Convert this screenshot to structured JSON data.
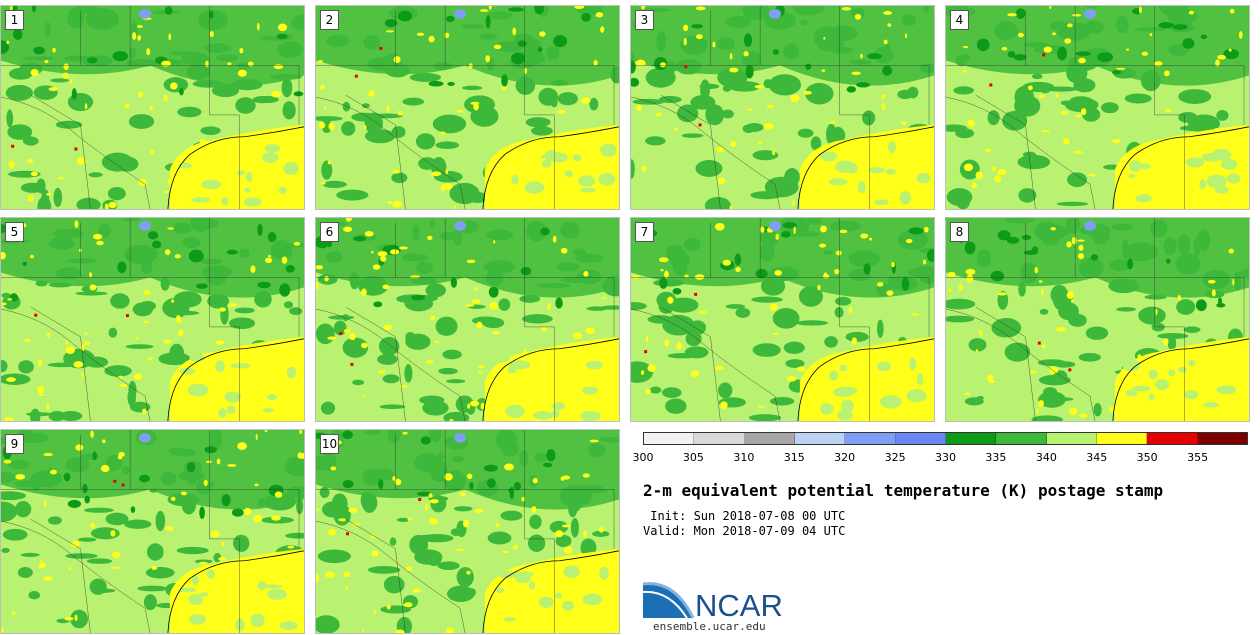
{
  "panels": [
    {
      "label": "1"
    },
    {
      "label": "2"
    },
    {
      "label": "3"
    },
    {
      "label": "4"
    },
    {
      "label": "5"
    },
    {
      "label": "6"
    },
    {
      "label": "7"
    },
    {
      "label": "8"
    },
    {
      "label": "9"
    },
    {
      "label": "10"
    }
  ],
  "colorbar": {
    "ticks": [
      "300",
      "305",
      "310",
      "315",
      "320",
      "325",
      "330",
      "335",
      "340",
      "345",
      "350",
      "355"
    ],
    "colors": [
      "#f2f2f2",
      "#d9d9d9",
      "#a6a6a6",
      "#bcd2f5",
      "#7f9ef4",
      "#6b86f0",
      "#0c9a18",
      "#3eb83a",
      "#b8f270",
      "#ffff1a",
      "#e60000",
      "#7a0000"
    ]
  },
  "title": "2-m equivalent potential temperature (K) postage stamp",
  "init": " Init: Sun 2018-07-08 00 UTC",
  "valid": "Valid: Mon 2018-07-09 04 UTC",
  "logo_text": "NCAR",
  "site": "ensemble.ucar.edu"
}
